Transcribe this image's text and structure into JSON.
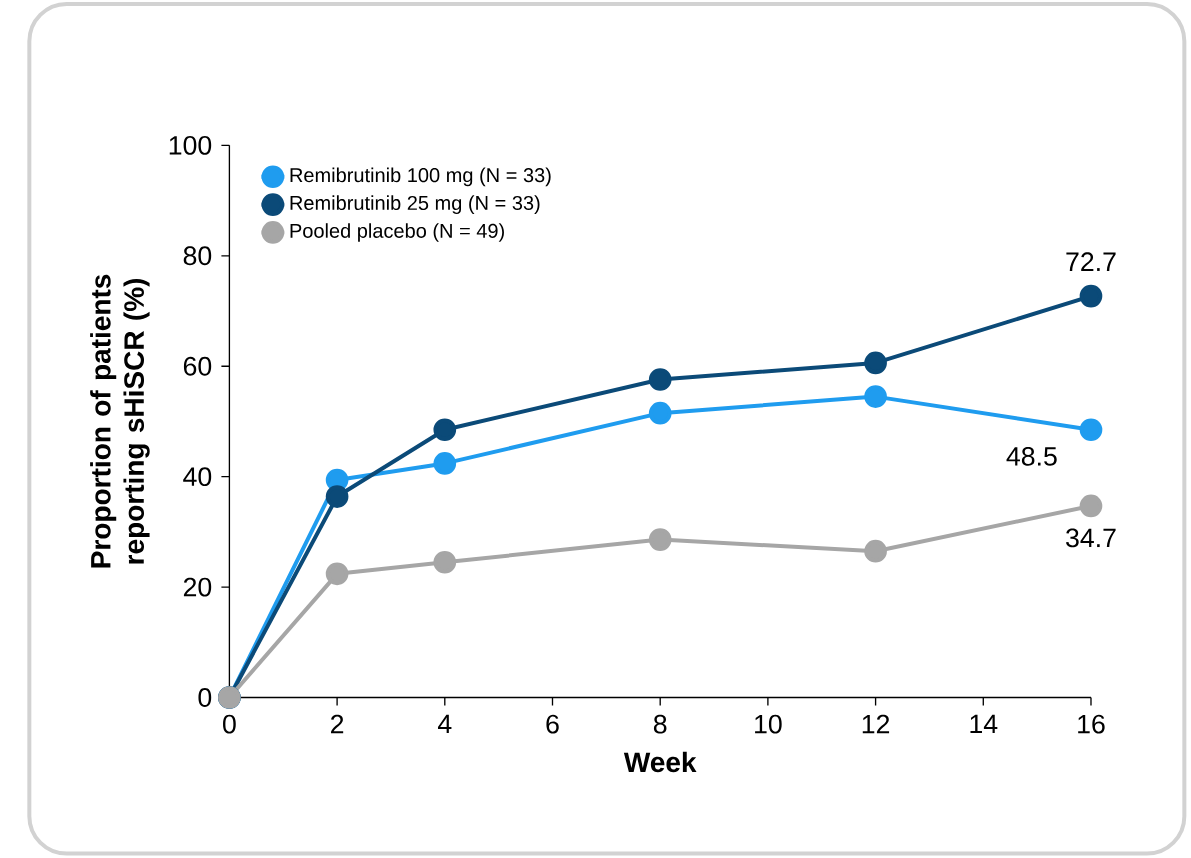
{
  "chart_data": {
    "type": "line",
    "xlabel": "Week",
    "ylabel": "Proportion of patients reporting sHiSCR (%)",
    "x": [
      0,
      2,
      4,
      8,
      12,
      16
    ],
    "series": [
      {
        "name": "Remibrutinib 100 mg (N = 33)",
        "color": "#1f9cef",
        "values": [
          0,
          39.4,
          42.4,
          51.5,
          54.5,
          48.5
        ],
        "value_labels": [
          null,
          null,
          null,
          null,
          null,
          "48.5"
        ]
      },
      {
        "name": "Remibrutinib 25 mg (N = 33)",
        "color": "#0b4a78",
        "values": [
          0,
          36.4,
          48.5,
          57.6,
          60.6,
          72.7
        ],
        "value_labels": [
          null,
          null,
          null,
          null,
          null,
          "72.7"
        ]
      },
      {
        "name": "Pooled placebo (N = 49)",
        "color": "#a6a6a6",
        "values": [
          0,
          22.4,
          24.5,
          28.6,
          26.5,
          34.7
        ],
        "value_labels": [
          null,
          null,
          null,
          null,
          null,
          "34.7"
        ]
      }
    ],
    "xlim": [
      0,
      16
    ],
    "xticks": [
      0,
      2,
      4,
      6,
      8,
      10,
      12,
      14,
      16
    ],
    "ylim": [
      0,
      100
    ],
    "yticks": [
      0,
      20,
      40,
      60,
      80,
      100
    ],
    "grid": false,
    "legend": "top left",
    "marker": "circle",
    "line_style": "solid"
  }
}
